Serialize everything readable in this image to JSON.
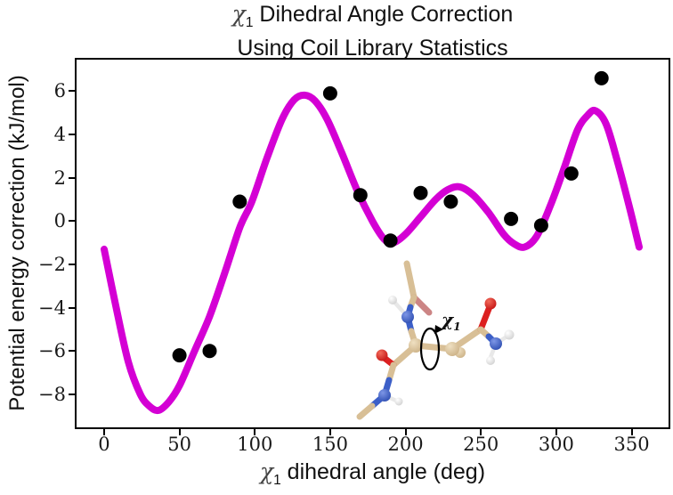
{
  "title": {
    "sym": "χ",
    "sub": "1",
    "line1_rest": " Dihedral Angle Correction",
    "line2": "Using Coil Library Statistics"
  },
  "axes": {
    "ylabel": "Potential energy correction (kJ/mol)",
    "xlabel": {
      "sym": "χ",
      "sub": "1",
      "rest": " dihedral angle (deg)"
    }
  },
  "inset": {
    "label_sym": "χ",
    "label_sub": "1",
    "description": "ball-and-stick dipeptide model with rotation arrow around the chi1 bond",
    "atom_colors": {
      "carbon": "#d8bf96",
      "nitrogen": "#3c5fc8",
      "oxygen": "#dc2020",
      "hydrogen": "#efefef",
      "faded_oxygen": "#cc8585"
    }
  },
  "colors": {
    "curve": "#d400d4",
    "points": "#000000",
    "frame": "#000000",
    "background": "#ffffff"
  },
  "chart_data": {
    "type": "line",
    "title": "chi1 Dihedral Angle Correction Using Coil Library Statistics",
    "xlabel": "chi1 dihedral angle (deg)",
    "ylabel": "Potential energy correction (kJ/mol)",
    "xlim": [
      -18.3,
      374.5
    ],
    "ylim": [
      -9.53,
      7.46
    ],
    "grid": false,
    "legend": "none",
    "x_tick_values": [
      0,
      50,
      100,
      150,
      200,
      250,
      300,
      350
    ],
    "x_tick_labels": [
      "0",
      "50",
      "100",
      "150",
      "200",
      "250",
      "300",
      "350"
    ],
    "y_tick_values": [
      6,
      4,
      2,
      0,
      -2,
      -4,
      -6,
      -8
    ],
    "y_tick_labels": [
      "6",
      "4",
      "2",
      "0",
      "−2",
      "−4",
      "−6",
      "−8"
    ],
    "series": [
      {
        "name": "correction-fit-curve",
        "type": "line",
        "color": "#d400d4",
        "width": 8,
        "points": [
          [
            0,
            -1.3
          ],
          [
            8,
            -4.0
          ],
          [
            16,
            -6.5
          ],
          [
            24,
            -8.0
          ],
          [
            30,
            -8.55
          ],
          [
            36,
            -8.75
          ],
          [
            43,
            -8.35
          ],
          [
            50,
            -7.6
          ],
          [
            60,
            -6.0
          ],
          [
            70,
            -4.4
          ],
          [
            80,
            -2.4
          ],
          [
            90,
            -0.3
          ],
          [
            98,
            0.9
          ],
          [
            108,
            2.9
          ],
          [
            118,
            4.7
          ],
          [
            126,
            5.6
          ],
          [
            133,
            5.82
          ],
          [
            140,
            5.55
          ],
          [
            148,
            4.7
          ],
          [
            158,
            3.1
          ],
          [
            168,
            1.4
          ],
          [
            178,
            0.0
          ],
          [
            186,
            -0.85
          ],
          [
            192,
            -1.0
          ],
          [
            200,
            -0.6
          ],
          [
            210,
            0.2
          ],
          [
            220,
            1.0
          ],
          [
            228,
            1.45
          ],
          [
            236,
            1.58
          ],
          [
            245,
            1.2
          ],
          [
            255,
            0.4
          ],
          [
            265,
            -0.6
          ],
          [
            272,
            -1.05
          ],
          [
            279,
            -1.2
          ],
          [
            287,
            -0.7
          ],
          [
            296,
            0.7
          ],
          [
            305,
            2.4
          ],
          [
            314,
            4.2
          ],
          [
            321,
            4.9
          ],
          [
            326,
            5.1
          ],
          [
            333,
            4.5
          ],
          [
            340,
            2.9
          ],
          [
            348,
            0.8
          ],
          [
            355,
            -1.2
          ]
        ]
      },
      {
        "name": "coil-library-statistics-points",
        "type": "scatter",
        "color": "#000000",
        "radius": 8,
        "points": [
          [
            50,
            -6.2
          ],
          [
            70,
            -6.0
          ],
          [
            90,
            0.9
          ],
          [
            150,
            5.9
          ],
          [
            170,
            1.2
          ],
          [
            190,
            -0.9
          ],
          [
            210,
            1.3
          ],
          [
            230,
            0.9
          ],
          [
            270,
            0.1
          ],
          [
            290,
            -0.2
          ],
          [
            310,
            2.2
          ],
          [
            330,
            6.6
          ]
        ]
      }
    ]
  }
}
